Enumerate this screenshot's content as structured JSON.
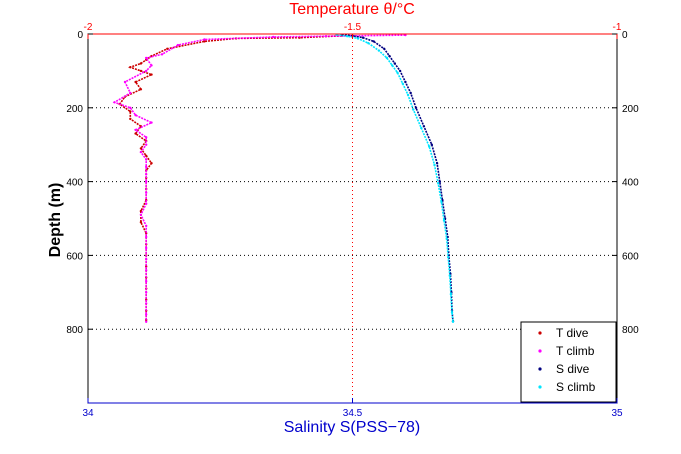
{
  "chart_data": {
    "type": "scatter",
    "top_axis": {
      "label": "Temperature θ/°C",
      "range": [
        -2,
        -1
      ],
      "ticks": [
        "-2",
        "-1.5",
        "-1"
      ],
      "color": "#ff0000"
    },
    "bottom_axis": {
      "label": "Salinity S(PSS−78)",
      "range": [
        34,
        35
      ],
      "ticks": [
        "34",
        "34.5",
        "35"
      ],
      "color": "#0000cc"
    },
    "y_axis": {
      "label": "Depth (m)",
      "range": [
        0,
        1000
      ],
      "reversed": true,
      "ticks": [
        0,
        200,
        400,
        600,
        800
      ]
    },
    "grid": true,
    "legend_position": "bottom-right",
    "series": [
      {
        "name": "T dive",
        "axis": "top",
        "color": "#cc0000",
        "points": [
          [
            -1.52,
            5
          ],
          [
            -1.6,
            10
          ],
          [
            -1.72,
            12
          ],
          [
            -1.78,
            20
          ],
          [
            -1.85,
            40
          ],
          [
            -1.88,
            60
          ],
          [
            -1.89,
            70
          ],
          [
            -1.9,
            80
          ],
          [
            -1.92,
            90
          ],
          [
            -1.9,
            100
          ],
          [
            -1.88,
            110
          ],
          [
            -1.91,
            130
          ],
          [
            -1.9,
            150
          ],
          [
            -1.93,
            170
          ],
          [
            -1.94,
            190
          ],
          [
            -1.92,
            210
          ],
          [
            -1.92,
            230
          ],
          [
            -1.9,
            250
          ],
          [
            -1.91,
            270
          ],
          [
            -1.89,
            290
          ],
          [
            -1.9,
            310
          ],
          [
            -1.89,
            330
          ],
          [
            -1.88,
            350
          ],
          [
            -1.89,
            370
          ],
          [
            -1.89,
            390
          ],
          [
            -1.89,
            420
          ],
          [
            -1.89,
            450
          ],
          [
            -1.9,
            480
          ],
          [
            -1.9,
            510
          ],
          [
            -1.89,
            540
          ],
          [
            -1.89,
            570
          ],
          [
            -1.89,
            600
          ],
          [
            -1.89,
            630
          ],
          [
            -1.89,
            660
          ],
          [
            -1.89,
            690
          ],
          [
            -1.89,
            720
          ],
          [
            -1.89,
            750
          ],
          [
            -1.89,
            775
          ]
        ]
      },
      {
        "name": "T climb",
        "axis": "top",
        "color": "#ff00ff",
        "points": [
          [
            -1.4,
            3
          ],
          [
            -1.55,
            6
          ],
          [
            -1.65,
            8
          ],
          [
            -1.78,
            15
          ],
          [
            -1.83,
            30
          ],
          [
            -1.86,
            55
          ],
          [
            -1.89,
            65
          ],
          [
            -1.88,
            85
          ],
          [
            -1.89,
            100
          ],
          [
            -1.93,
            130
          ],
          [
            -1.92,
            160
          ],
          [
            -1.95,
            185
          ],
          [
            -1.92,
            200
          ],
          [
            -1.91,
            220
          ],
          [
            -1.88,
            240
          ],
          [
            -1.91,
            260
          ],
          [
            -1.89,
            280
          ],
          [
            -1.89,
            300
          ],
          [
            -1.9,
            320
          ],
          [
            -1.89,
            340
          ],
          [
            -1.89,
            360
          ],
          [
            -1.89,
            380
          ],
          [
            -1.89,
            400
          ],
          [
            -1.89,
            430
          ],
          [
            -1.89,
            460
          ],
          [
            -1.9,
            490
          ],
          [
            -1.89,
            520
          ],
          [
            -1.89,
            550
          ],
          [
            -1.89,
            580
          ],
          [
            -1.89,
            610
          ],
          [
            -1.89,
            640
          ],
          [
            -1.89,
            670
          ],
          [
            -1.89,
            700
          ],
          [
            -1.89,
            730
          ],
          [
            -1.89,
            760
          ],
          [
            -1.89,
            780
          ]
        ]
      },
      {
        "name": "S dive",
        "axis": "bottom",
        "color": "#000080",
        "points": [
          [
            34.48,
            2
          ],
          [
            34.5,
            5
          ],
          [
            34.52,
            10
          ],
          [
            34.54,
            20
          ],
          [
            34.56,
            40
          ],
          [
            34.57,
            60
          ],
          [
            34.58,
            80
          ],
          [
            34.59,
            100
          ],
          [
            34.6,
            130
          ],
          [
            34.61,
            160
          ],
          [
            34.62,
            200
          ],
          [
            34.635,
            250
          ],
          [
            34.65,
            300
          ],
          [
            34.66,
            350
          ],
          [
            34.665,
            400
          ],
          [
            34.67,
            450
          ],
          [
            34.675,
            500
          ],
          [
            34.68,
            550
          ],
          [
            34.682,
            600
          ],
          [
            34.685,
            650
          ],
          [
            34.687,
            700
          ],
          [
            34.688,
            750
          ],
          [
            34.69,
            778
          ]
        ]
      },
      {
        "name": "S climb",
        "axis": "bottom",
        "color": "#00e5ff",
        "points": [
          [
            34.47,
            2
          ],
          [
            34.49,
            6
          ],
          [
            34.51,
            12
          ],
          [
            34.53,
            25
          ],
          [
            34.55,
            45
          ],
          [
            34.565,
            65
          ],
          [
            34.575,
            85
          ],
          [
            34.585,
            105
          ],
          [
            34.595,
            135
          ],
          [
            34.605,
            165
          ],
          [
            34.615,
            205
          ],
          [
            34.63,
            255
          ],
          [
            34.645,
            305
          ],
          [
            34.655,
            355
          ],
          [
            34.662,
            405
          ],
          [
            34.668,
            455
          ],
          [
            34.673,
            505
          ],
          [
            34.678,
            555
          ],
          [
            34.681,
            605
          ],
          [
            34.684,
            655
          ],
          [
            34.686,
            705
          ],
          [
            34.688,
            755
          ],
          [
            34.69,
            780
          ]
        ]
      }
    ]
  }
}
